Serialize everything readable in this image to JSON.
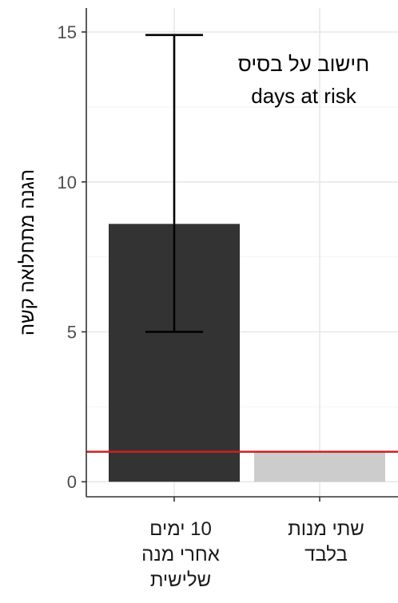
{
  "chart_data": {
    "type": "bar",
    "title": "",
    "xlabel": "",
    "ylabel": "הגנה מתחלואה קשה",
    "ylim": [
      -0.5,
      15.8
    ],
    "yticks": [
      0,
      5,
      10,
      15
    ],
    "grid": true,
    "categories": [
      {
        "lines": [
          "10 ימים",
          "אחרי מנה",
          "שלישית"
        ]
      },
      {
        "lines": [
          "שתי מנות",
          "בלבד"
        ]
      }
    ],
    "values": [
      8.6,
      1.0
    ],
    "error_bars": [
      {
        "low": 5.0,
        "high": 14.9
      },
      null
    ],
    "reference_line": {
      "y": 1.0,
      "color": "#cc1f1f"
    },
    "bar_colors": [
      "#333333",
      "#cccccc"
    ],
    "annotation": {
      "lines": [
        "חישוב על בסיס",
        "days at risk"
      ]
    }
  }
}
